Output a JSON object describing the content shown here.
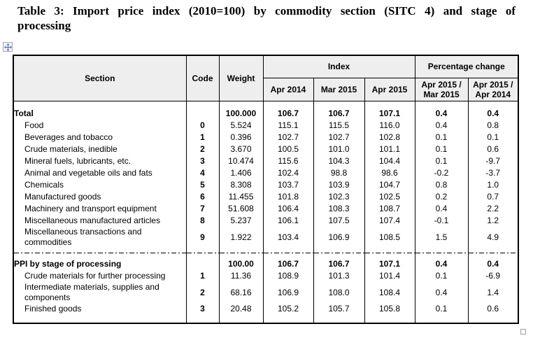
{
  "page": {
    "title_line1": "Table 3: Import price index (2010=100) by commodity section (SITC 4) and stage of",
    "title_line2": "processing"
  },
  "icons": {
    "move_handle": "move-cross-icon",
    "resize_handle": "resize-square-icon"
  },
  "colors": {
    "header_bg": "#eeeeee",
    "border": "#000000",
    "move_icon_blue": "#3f6fc4",
    "resize_gray": "#9e9e9e"
  },
  "table": {
    "header": {
      "section": "Section",
      "code": "Code",
      "weight": "Weight",
      "index_group": "Index",
      "change_group": "Percentage change",
      "index_cols": [
        "Apr 2014",
        "Mar 2015",
        "Apr 2015"
      ],
      "change_cols": [
        {
          "line1": "Apr 2015 /",
          "line2": "Mar 2015"
        },
        {
          "line1": "Apr 2015 /",
          "line2": "Apr 2014"
        }
      ]
    },
    "groups": [
      {
        "rows": [
          {
            "section": "Total",
            "code": "",
            "weight": "100.000",
            "index": [
              "106.7",
              "106.7",
              "107.1"
            ],
            "change": [
              "0.4",
              "0.4"
            ],
            "bold": true
          },
          {
            "section": "Food",
            "code": "0",
            "weight": "5.524",
            "index": [
              "115.1",
              "115.5",
              "116.0"
            ],
            "change": [
              "0.4",
              "0.8"
            ]
          },
          {
            "section": "Beverages and tobacco",
            "code": "1",
            "weight": "0.396",
            "index": [
              "102.7",
              "102.7",
              "102.8"
            ],
            "change": [
              "0.1",
              "0.1"
            ]
          },
          {
            "section": "Crude materials, inedible",
            "code": "2",
            "weight": "3.670",
            "index": [
              "100.5",
              "101.0",
              "101.1"
            ],
            "change": [
              "0.1",
              "0.6"
            ]
          },
          {
            "section": "Mineral fuels, lubricants, etc.",
            "code": "3",
            "weight": "10.474",
            "index": [
              "115.6",
              "104.3",
              "104.4"
            ],
            "change": [
              "0.1",
              "-9.7"
            ]
          },
          {
            "section": "Animal and vegetable oils and fats",
            "code": "4",
            "weight": "1.406",
            "index": [
              "102.4",
              "98.8",
              "98.6"
            ],
            "change": [
              "-0.2",
              "-3.7"
            ]
          },
          {
            "section": "Chemicals",
            "code": "5",
            "weight": "8.308",
            "index": [
              "103.7",
              "103.9",
              "104.7"
            ],
            "change": [
              "0.8",
              "1.0"
            ]
          },
          {
            "section": "Manufactured goods",
            "code": "6",
            "weight": "11.455",
            "index": [
              "101.8",
              "102.3",
              "102.5"
            ],
            "change": [
              "0.2",
              "0.7"
            ]
          },
          {
            "section": "Machinery and transport equipment",
            "code": "7",
            "weight": "51.608",
            "index": [
              "106.4",
              "108.3",
              "108.7"
            ],
            "change": [
              "0.4",
              "2.2"
            ]
          },
          {
            "section": "Miscellaneous manufactured articles",
            "code": "8",
            "weight": "5.237",
            "index": [
              "106.1",
              "107.5",
              "107.4"
            ],
            "change": [
              "-0.1",
              "1.2"
            ]
          },
          {
            "section": "Miscellaneous transactions and commodities",
            "code": "9",
            "weight": "1.922",
            "index": [
              "103.4",
              "106.9",
              "108.5"
            ],
            "change": [
              "1.5",
              "4.9"
            ]
          }
        ]
      },
      {
        "rows": [
          {
            "section": "PPI by stage of processing",
            "code": "",
            "weight": "100.00",
            "index": [
              "106.7",
              "106.7",
              "107.1"
            ],
            "change": [
              "0.4",
              "0.4"
            ],
            "bold": true
          },
          {
            "section": "Crude materials for further processing",
            "code": "1",
            "weight": "11.36",
            "index": [
              "108.9",
              "101.3",
              "101.4"
            ],
            "change": [
              "0.1",
              "-6.9"
            ]
          },
          {
            "section": "Intermediate materials, supplies and components",
            "code": "2",
            "weight": "68.16",
            "index": [
              "106.9",
              "108.0",
              "108.4"
            ],
            "change": [
              "0.4",
              "1.4"
            ]
          },
          {
            "section": "Finished goods",
            "code": "3",
            "weight": "20.48",
            "index": [
              "105.2",
              "105.7",
              "105.8"
            ],
            "change": [
              "0.1",
              "0.6"
            ]
          }
        ]
      }
    ]
  }
}
